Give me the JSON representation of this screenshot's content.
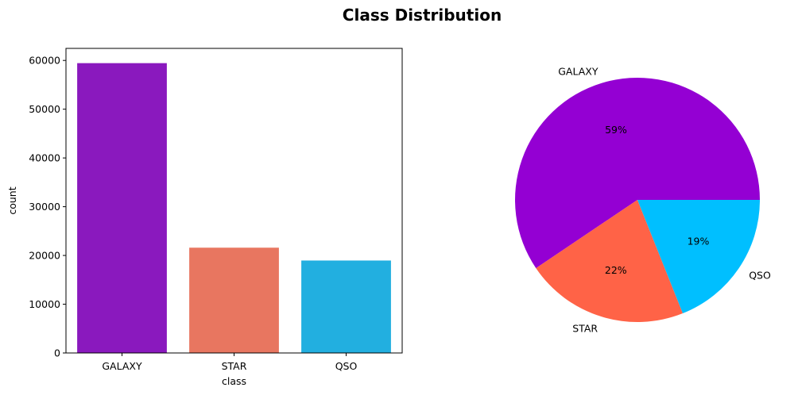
{
  "figure": {
    "title": "Class Distribution"
  },
  "chart_data": [
    {
      "type": "bar",
      "title": "",
      "xlabel": "class",
      "ylabel": "count",
      "categories": [
        "GALAXY",
        "STAR",
        "QSO"
      ],
      "values": [
        59445,
        21594,
        18961
      ],
      "colors": [
        "#8A19BE",
        "#E87660",
        "#22AFE0"
      ],
      "ylim": [
        0,
        62472
      ],
      "yticks": [
        0,
        10000,
        20000,
        30000,
        40000,
        50000,
        60000
      ],
      "ytick_labels": [
        "0",
        "10000",
        "20000",
        "30000",
        "40000",
        "50000",
        "60000"
      ],
      "grid": false
    },
    {
      "type": "pie",
      "title": "",
      "labels": [
        "GALAXY",
        "STAR",
        "QSO"
      ],
      "values": [
        59445,
        21594,
        18961
      ],
      "percent_labels": [
        "59%",
        "22%",
        "19%"
      ],
      "colors": [
        "#9400D3",
        "#FF6347",
        "#00BFFF"
      ],
      "start_angle_deg": 0,
      "direction": "counterclockwise"
    }
  ]
}
